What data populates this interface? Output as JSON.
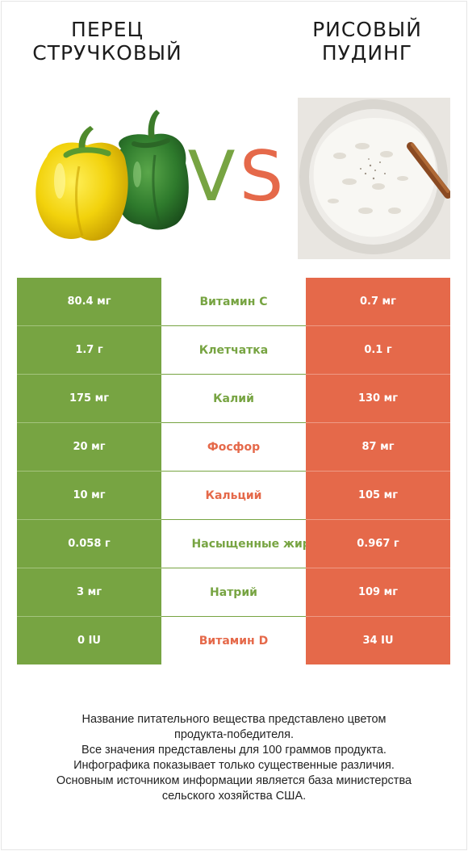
{
  "left_product": {
    "title_line1": "ПЕРЕЦ",
    "title_line2": "СТРУЧКОВЫЙ",
    "color": "#77a442"
  },
  "right_product": {
    "title_line1": "РИСОВЫЙ",
    "title_line2": "ПУДИНГ",
    "color": "#e5694a"
  },
  "vs": {
    "v": "V",
    "s": "S"
  },
  "rows": [
    {
      "left": "80.4 мг",
      "name": "Витамин C",
      "right": "0.7 мг",
      "winner": "left"
    },
    {
      "left": "1.7 г",
      "name": "Клетчатка",
      "right": "0.1 г",
      "winner": "left"
    },
    {
      "left": "175 мг",
      "name": "Калий",
      "right": "130 мг",
      "winner": "left"
    },
    {
      "left": "20 мг",
      "name": "Фосфор",
      "right": "87 мг",
      "winner": "right"
    },
    {
      "left": "10 мг",
      "name": "Кальций",
      "right": "105 мг",
      "winner": "right"
    },
    {
      "left": "0.058 г",
      "name": "Насыщенные жиры",
      "right": "0.967 г",
      "winner": "left"
    },
    {
      "left": "3 мг",
      "name": "Натрий",
      "right": "109 мг",
      "winner": "left"
    },
    {
      "left": "0 IU",
      "name": "Витамин D",
      "right": "34 IU",
      "winner": "right"
    }
  ],
  "footer": [
    "Название питательного вещества представлено цветом",
    "продукта-победителя.",
    "Все значения представлены для 100 граммов продукта.",
    "Инфографика показывает только существенные различия.",
    "Основным источником информации является база министерства",
    "сельского хозяйства США."
  ]
}
